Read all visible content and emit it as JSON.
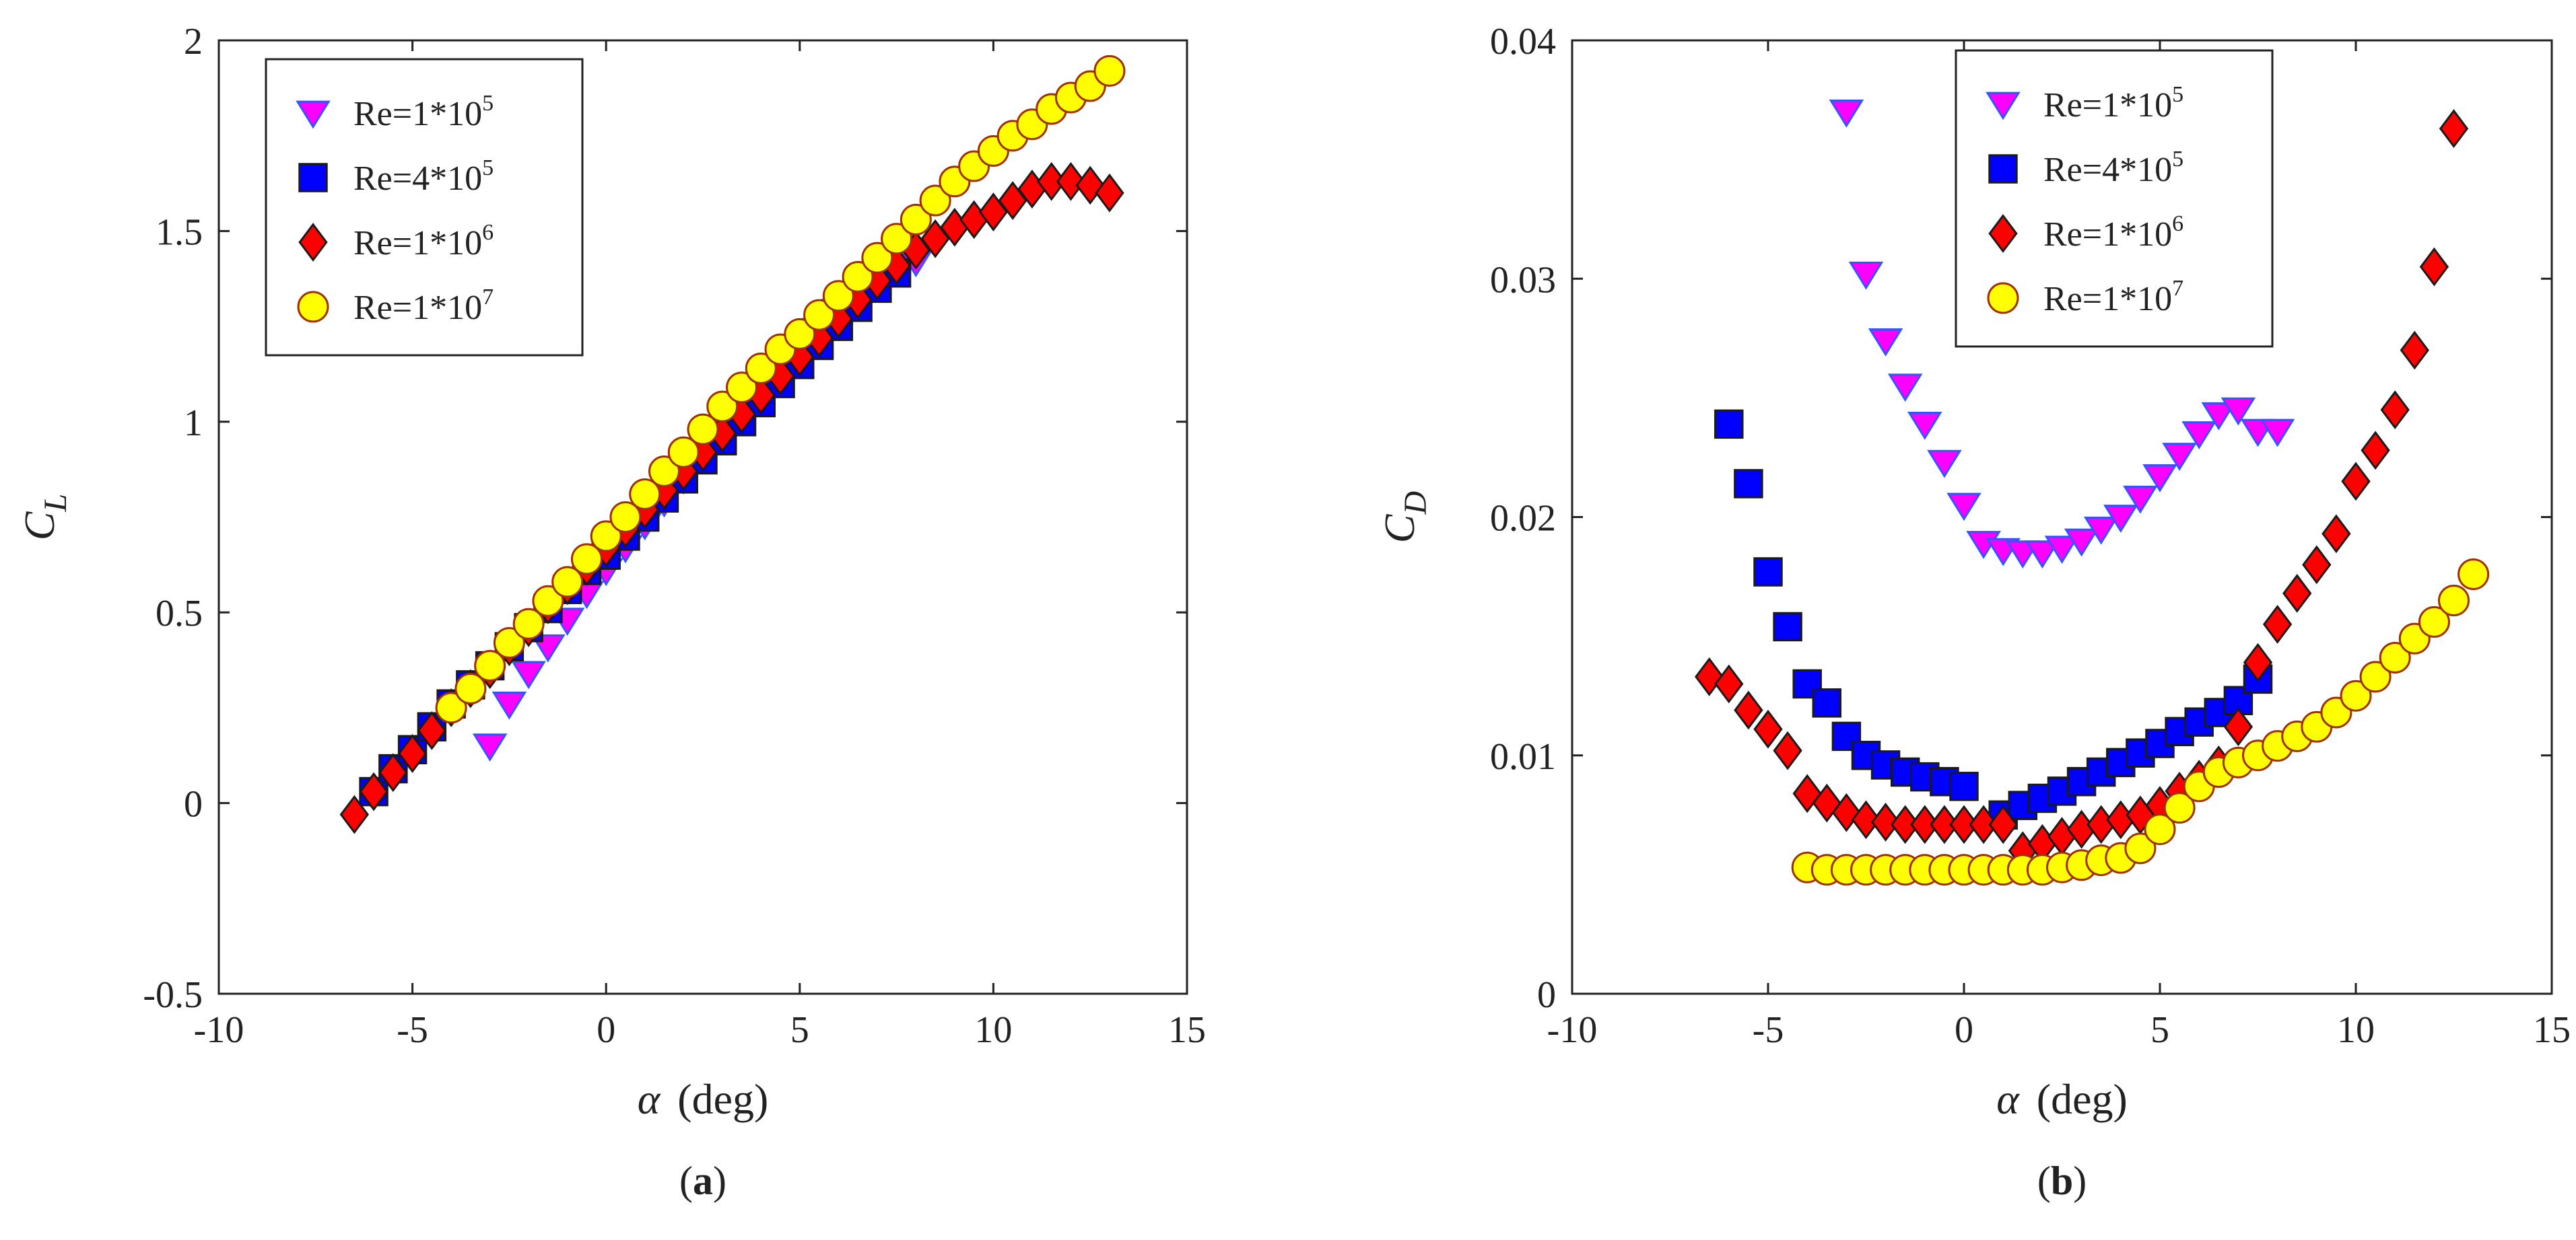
{
  "chart_data": [
    {
      "type": "scatter",
      "panel_label": "(a)",
      "panel_letter": "a",
      "ylabel_main": "C",
      "ylabel_sub": "L",
      "xlabel_symbol": "α",
      "xlabel_unit": "(deg)",
      "xlim": [
        -10,
        15
      ],
      "ylim": [
        -0.5,
        2
      ],
      "xticks": [
        -10,
        -5,
        0,
        5,
        10,
        15
      ],
      "xtick_labels": [
        "-10",
        "-5",
        "0",
        "5",
        "10",
        "15"
      ],
      "yticks": [
        -0.5,
        0,
        0.5,
        1,
        1.5,
        2
      ],
      "ytick_labels": [
        "-0.5",
        "0",
        "0.5",
        "1",
        "1.5",
        "2"
      ],
      "legend_position": "top-left",
      "series": [
        {
          "name": "Re=1*10^5",
          "label": "Re=1*10",
          "exp": "5",
          "marker": "triangle-down",
          "fill": "#ff00ff",
          "x": [
            -3,
            -2.5,
            -2,
            -1.5,
            -1,
            -0.5,
            0,
            0.5,
            1,
            1.5,
            2,
            2.5,
            3,
            3.5,
            4,
            4.5,
            5,
            5.5,
            6,
            6.5,
            7,
            7.5,
            8
          ],
          "y": [
            0.15,
            0.26,
            0.34,
            0.41,
            0.48,
            0.55,
            0.61,
            0.67,
            0.73,
            0.79,
            0.85,
            0.91,
            0.97,
            1.03,
            1.09,
            1.14,
            1.19,
            1.24,
            1.29,
            1.33,
            1.37,
            1.4,
            1.42
          ]
        },
        {
          "name": "Re=4*10^5",
          "label": "Re=4*10",
          "exp": "5",
          "marker": "square",
          "fill": "#0000ff",
          "x": [
            -6,
            -5.5,
            -5,
            -4.5,
            -4,
            -3.5,
            -3,
            -2.5,
            -2,
            -1.5,
            -1,
            -0.5,
            0,
            0.5,
            1,
            1.5,
            2,
            2.5,
            3,
            3.5,
            4,
            4.5,
            5,
            5.5,
            6,
            6.5,
            7,
            7.5
          ],
          "y": [
            0.03,
            0.09,
            0.14,
            0.2,
            0.26,
            0.31,
            0.36,
            0.41,
            0.46,
            0.51,
            0.56,
            0.61,
            0.65,
            0.7,
            0.75,
            0.8,
            0.85,
            0.9,
            0.95,
            1.0,
            1.05,
            1.1,
            1.15,
            1.2,
            1.25,
            1.3,
            1.35,
            1.39
          ]
        },
        {
          "name": "Re=1*10^6",
          "label": "Re=1*10",
          "exp": "6",
          "marker": "diamond",
          "fill": "#ff0000",
          "x": [
            -6.5,
            -6,
            -5.5,
            -5,
            -4.5,
            -4,
            -3.5,
            -3,
            -2.5,
            -2,
            -1.5,
            -1,
            -0.5,
            0,
            0.5,
            1,
            1.5,
            2,
            2.5,
            3,
            3.5,
            4,
            4.5,
            5,
            5.5,
            6,
            6.5,
            7,
            7.5,
            8,
            8.5,
            9,
            9.5,
            10,
            10.5,
            11,
            11.5,
            12,
            12.5,
            13
          ],
          "y": [
            -0.03,
            0.03,
            0.08,
            0.13,
            0.19,
            0.25,
            0.3,
            0.35,
            0.41,
            0.46,
            0.52,
            0.57,
            0.62,
            0.67,
            0.72,
            0.77,
            0.82,
            0.87,
            0.92,
            0.97,
            1.02,
            1.07,
            1.12,
            1.17,
            1.22,
            1.27,
            1.32,
            1.37,
            1.41,
            1.45,
            1.48,
            1.51,
            1.53,
            1.55,
            1.58,
            1.61,
            1.63,
            1.63,
            1.62,
            1.6
          ]
        },
        {
          "name": "Re=1*10^7",
          "label": "Re=1*10",
          "exp": "7",
          "marker": "circle",
          "fill": "#ffff00",
          "x": [
            -4,
            -3.5,
            -3,
            -2.5,
            -2,
            -1.5,
            -1,
            -0.5,
            0,
            0.5,
            1,
            1.5,
            2,
            2.5,
            3,
            3.5,
            4,
            4.5,
            5,
            5.5,
            6,
            6.5,
            7,
            7.5,
            8,
            8.5,
            9,
            9.5,
            10,
            10.5,
            11,
            11.5,
            12,
            12.5,
            13
          ],
          "y": [
            0.25,
            0.3,
            0.36,
            0.42,
            0.47,
            0.53,
            0.58,
            0.64,
            0.7,
            0.75,
            0.81,
            0.87,
            0.92,
            0.98,
            1.04,
            1.09,
            1.14,
            1.19,
            1.23,
            1.28,
            1.33,
            1.38,
            1.43,
            1.48,
            1.53,
            1.58,
            1.63,
            1.67,
            1.71,
            1.75,
            1.78,
            1.82,
            1.85,
            1.88,
            1.92
          ]
        }
      ]
    },
    {
      "type": "scatter",
      "panel_label": "(b)",
      "panel_letter": "b",
      "ylabel_main": "C",
      "ylabel_sub": "D",
      "xlabel_symbol": "α",
      "xlabel_unit": "(deg)",
      "xlim": [
        -10,
        15
      ],
      "ylim": [
        0,
        0.04
      ],
      "xticks": [
        -10,
        -5,
        0,
        5,
        10,
        15
      ],
      "xtick_labels": [
        "-10",
        "-5",
        "0",
        "5",
        "10",
        "15"
      ],
      "yticks": [
        0,
        0.01,
        0.02,
        0.03,
        0.04
      ],
      "ytick_labels": [
        "0",
        "0.01",
        "0.02",
        "0.03",
        "0.04"
      ],
      "legend_position": "top-right",
      "series": [
        {
          "name": "Re=1*10^5",
          "label": "Re=1*10",
          "exp": "5",
          "marker": "triangle-down",
          "fill": "#ff00ff",
          "x": [
            -3,
            -2.5,
            -2,
            -1.5,
            -1,
            -0.5,
            0,
            0.5,
            1,
            1.5,
            2,
            2.5,
            3,
            3.5,
            4,
            4.5,
            5,
            5.5,
            6,
            6.5,
            7,
            7.5,
            8
          ],
          "y": [
            0.037,
            0.0302,
            0.0274,
            0.0255,
            0.0239,
            0.0223,
            0.0205,
            0.0189,
            0.0186,
            0.0185,
            0.0185,
            0.0187,
            0.019,
            0.0195,
            0.02,
            0.0208,
            0.0217,
            0.0226,
            0.0235,
            0.0243,
            0.0245,
            0.0236,
            0.0236
          ]
        },
        {
          "name": "Re=4*10^5",
          "label": "Re=4*10",
          "exp": "5",
          "marker": "square",
          "fill": "#0000ff",
          "x": [
            -6,
            -5.5,
            -5,
            -4.5,
            -4,
            -3.5,
            -3,
            -2.5,
            -2,
            -1.5,
            -1,
            -0.5,
            0,
            1,
            1.5,
            2,
            2.5,
            3,
            3.5,
            4,
            4.5,
            5,
            5.5,
            6,
            6.5,
            7,
            7.5
          ],
          "y": [
            0.0239,
            0.0214,
            0.0177,
            0.0154,
            0.013,
            0.0122,
            0.0108,
            0.01,
            0.0096,
            0.0093,
            0.0091,
            0.0089,
            0.0087,
            0.0075,
            0.0079,
            0.0082,
            0.0085,
            0.0089,
            0.0093,
            0.0097,
            0.0101,
            0.0105,
            0.011,
            0.0114,
            0.0118,
            0.0123,
            0.0132
          ]
        },
        {
          "name": "Re=1*10^6",
          "label": "Re=1*10",
          "exp": "6",
          "marker": "diamond",
          "fill": "#ff0000",
          "x": [
            -6.5,
            -6,
            -5.5,
            -5,
            -4.5,
            -4,
            -3.5,
            -3,
            -2.5,
            -2,
            -1.5,
            -1,
            -0.5,
            0,
            0.5,
            1,
            1.5,
            2,
            2.5,
            3,
            3.5,
            4,
            4.5,
            5,
            5.5,
            6,
            6.5,
            7,
            7.5,
            8,
            8.5,
            9,
            9.5,
            10,
            10.5,
            11,
            11.5,
            12,
            12.5
          ],
          "y": [
            0.0133,
            0.013,
            0.0119,
            0.0111,
            0.0102,
            0.0084,
            0.008,
            0.0076,
            0.0073,
            0.0072,
            0.0071,
            0.0071,
            0.0071,
            0.0071,
            0.0071,
            0.0071,
            0.006,
            0.0063,
            0.0066,
            0.0069,
            0.0071,
            0.0073,
            0.0075,
            0.0079,
            0.0085,
            0.009,
            0.0096,
            0.0112,
            0.0139,
            0.0155,
            0.0168,
            0.018,
            0.0193,
            0.0215,
            0.0228,
            0.0245,
            0.027,
            0.0305,
            0.0363
          ]
        },
        {
          "name": "Re=1*10^7",
          "label": "Re=1*10",
          "exp": "7",
          "marker": "circle",
          "fill": "#ffff00",
          "x": [
            -4,
            -3.5,
            -3,
            -2.5,
            -2,
            -1.5,
            -1,
            -0.5,
            0,
            0.5,
            1,
            1.5,
            2,
            2.5,
            3,
            3.5,
            4,
            4.5,
            5,
            5.5,
            6,
            6.5,
            7,
            7.5,
            8,
            8.5,
            9,
            9.5,
            10,
            10.5,
            11,
            11.5,
            12,
            12.5,
            13
          ],
          "y": [
            0.0053,
            0.0052,
            0.0052,
            0.0052,
            0.0052,
            0.0052,
            0.0052,
            0.0052,
            0.0052,
            0.0052,
            0.0052,
            0.0052,
            0.0052,
            0.0053,
            0.0054,
            0.0056,
            0.0057,
            0.0061,
            0.0069,
            0.0078,
            0.0087,
            0.0093,
            0.0097,
            0.01,
            0.0104,
            0.0108,
            0.0112,
            0.0118,
            0.0125,
            0.0133,
            0.0141,
            0.0149,
            0.0156,
            0.0165,
            0.0176
          ]
        }
      ]
    }
  ]
}
